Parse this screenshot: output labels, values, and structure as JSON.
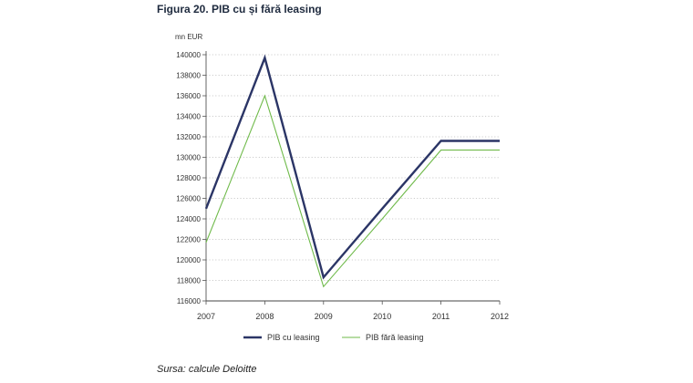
{
  "figure": {
    "title": "Figura 20. PIB cu și fără leasing",
    "source": "Sursa: calcule Deloitte"
  },
  "chart_data": {
    "type": "line",
    "title": "Figura 20. PIB cu și fără leasing",
    "ylabel": "mn EUR",
    "xlabel": "",
    "x": [
      "2007",
      "2008",
      "2009",
      "2010",
      "2011",
      "2012"
    ],
    "ylim": [
      116000,
      140000
    ],
    "yticks": [
      116000,
      118000,
      120000,
      122000,
      124000,
      126000,
      128000,
      130000,
      132000,
      134000,
      136000,
      138000,
      140000
    ],
    "grid": true,
    "legend": "bottom",
    "series": [
      {
        "name": "PIB cu leasing",
        "color": "#2b3566",
        "values": [
          125000,
          139700,
          118300,
          125000,
          131600,
          131600
        ]
      },
      {
        "name": "PIB fără leasing",
        "color": "#6fba4a",
        "values": [
          121700,
          136000,
          117400,
          124000,
          130700,
          130700
        ]
      }
    ]
  }
}
